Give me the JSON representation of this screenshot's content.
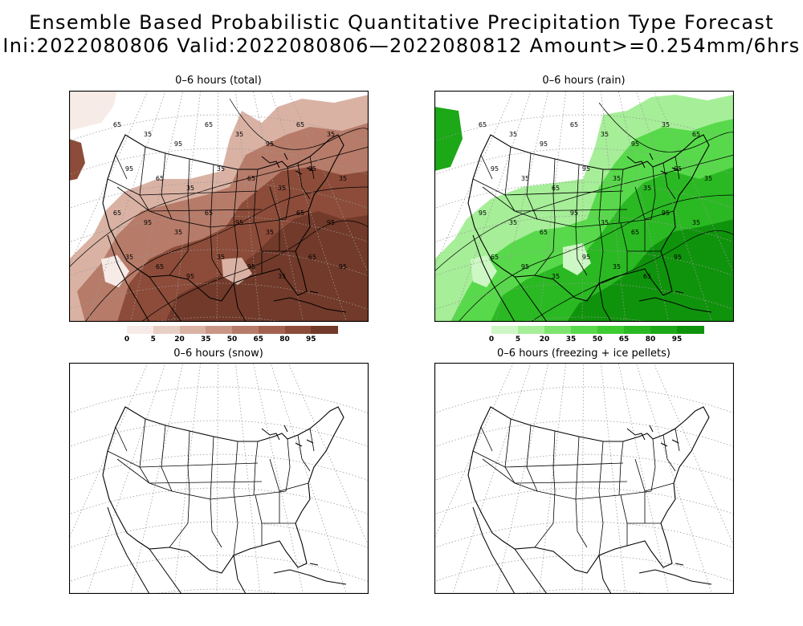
{
  "header": {
    "title_line1": "Ensemble Based Probabilistic Quantitative Precipitation Type Forecast",
    "title_line2": "Ini:2022080806 Valid:2022080806—2022080812 Amount>=0.254mm/6hrs"
  },
  "panels": [
    {
      "id": "total",
      "title": "0–6 hours (total)",
      "palette": "brown",
      "filled": true
    },
    {
      "id": "rain",
      "title": "0–6 hours (rain)",
      "palette": "green",
      "filled": true
    },
    {
      "id": "snow",
      "title": "0–6 hours (snow)",
      "palette": "none",
      "filled": false
    },
    {
      "id": "freezing",
      "title": "0–6 hours (freezing + ice pellets)",
      "palette": "none",
      "filled": false
    }
  ],
  "colorbars": {
    "levels": [
      "0",
      "5",
      "20",
      "35",
      "50",
      "65",
      "80",
      "95"
    ],
    "brown_colors": [
      "#f7ebe7",
      "#e8cfc5",
      "#d9b2a4",
      "#c99685",
      "#b77b69",
      "#a3624f",
      "#8c4c39",
      "#723a2a"
    ],
    "green_colors": [
      "#cdf7c4",
      "#a6ee98",
      "#7fe46f",
      "#58d94b",
      "#3ecb32",
      "#2ab922",
      "#1da817",
      "#10930c"
    ]
  },
  "contour_labels": {
    "total": [
      "65",
      "35",
      "95",
      "65",
      "35",
      "95",
      "65",
      "35",
      "95",
      "65",
      "35",
      "35",
      "65",
      "35",
      "95",
      "35",
      "65",
      "95",
      "35",
      "65",
      "95",
      "35",
      "65",
      "95",
      "35",
      "65",
      "95",
      "35",
      "95",
      "35",
      "65",
      "95"
    ],
    "rain": [
      "65",
      "35",
      "95",
      "65",
      "35",
      "95",
      "35",
      "65",
      "95",
      "35",
      "65",
      "95",
      "35",
      "35",
      "65",
      "35",
      "95",
      "35",
      "65",
      "95",
      "35",
      "65",
      "95",
      "35",
      "65",
      "95",
      "35",
      "95",
      "35",
      "65",
      "95"
    ]
  }
}
